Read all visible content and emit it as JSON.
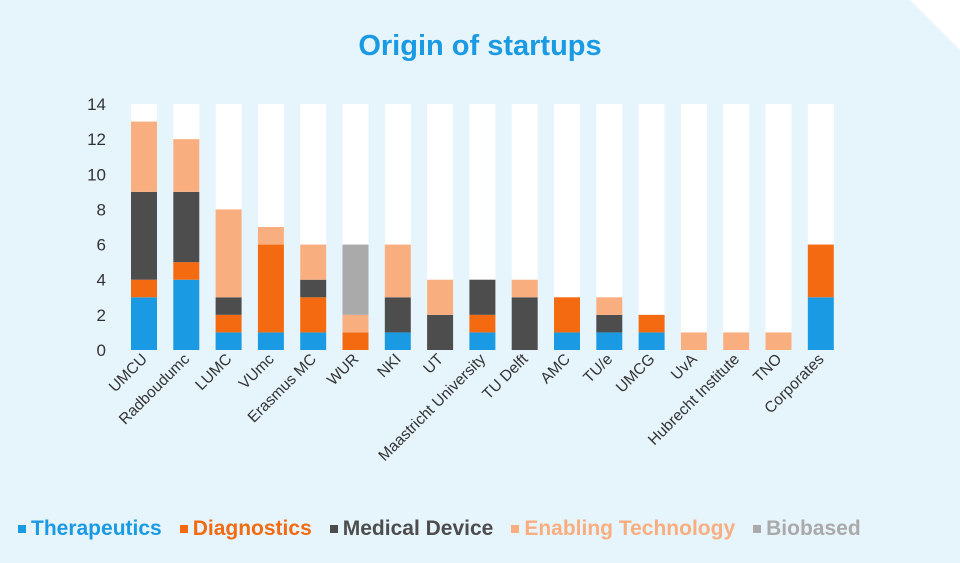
{
  "chart_data": {
    "type": "bar",
    "stacked": true,
    "title": "Origin of startups",
    "xlabel": "",
    "ylabel": "",
    "ylim": [
      0,
      14
    ],
    "yticks": [
      0,
      2,
      4,
      6,
      8,
      10,
      12,
      14
    ],
    "grid": false,
    "legend_position": "bottom",
    "background_fill_to": 14,
    "categories": [
      "UMCU",
      "Radboudumc",
      "LUMC",
      "VUmc",
      "Erasmus MC",
      "WUR",
      "NKI",
      "UT",
      "Maastricht University",
      "TU Delft",
      "AMC",
      "TU/e",
      "UMCG",
      "UvA",
      "Hubrecht Institute",
      "TNO",
      "Corporates"
    ],
    "series": [
      {
        "name": "Therapeutics",
        "color": "#1a9ae2",
        "values": [
          3,
          4,
          1,
          1,
          1,
          0,
          1,
          0,
          1,
          0,
          1,
          1,
          1,
          0,
          0,
          0,
          3
        ]
      },
      {
        "name": "Diagnostics",
        "color": "#f36a10",
        "values": [
          1,
          1,
          1,
          5,
          2,
          1,
          0,
          0,
          1,
          0,
          2,
          0,
          1,
          0,
          0,
          0,
          3
        ]
      },
      {
        "name": "Medical Device",
        "color": "#4d4d4d",
        "values": [
          5,
          4,
          1,
          0,
          1,
          0,
          2,
          2,
          2,
          3,
          0,
          1,
          0,
          0,
          0,
          0,
          0
        ]
      },
      {
        "name": "Enabling Technology",
        "color": "#f9ae80",
        "values": [
          4,
          3,
          5,
          1,
          2,
          1,
          3,
          2,
          0,
          1,
          0,
          1,
          0,
          1,
          1,
          1,
          0
        ]
      },
      {
        "name": "Biobased",
        "color": "#aaaaaa",
        "values": [
          0,
          0,
          0,
          0,
          0,
          4,
          0,
          0,
          0,
          0,
          0,
          0,
          0,
          0,
          0,
          0,
          0
        ]
      }
    ]
  }
}
